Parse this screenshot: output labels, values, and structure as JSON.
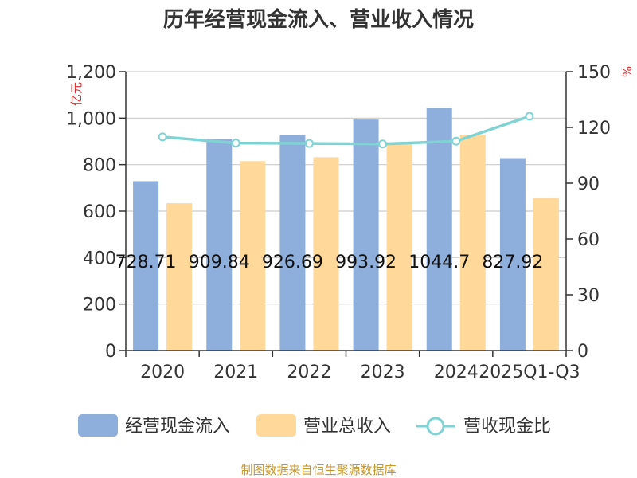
{
  "chart_data": {
    "type": "bar",
    "title": "历年经营现金流入、营业收入情况",
    "categories": [
      "2020",
      "2021",
      "2022",
      "2023",
      "2024",
      "2025Q1-Q3"
    ],
    "series": [
      {
        "name": "经营现金流入",
        "kind": "bar",
        "axis": "left",
        "color": "#8eaedb",
        "values": [
          728.71,
          909.84,
          926.69,
          993.92,
          1044.7,
          827.92
        ]
      },
      {
        "name": "营业总收入",
        "kind": "bar",
        "axis": "left",
        "color": "#ffd89a",
        "values": [
          634,
          815,
          832,
          888,
          928,
          657
        ]
      },
      {
        "name": "营收现金比",
        "kind": "line",
        "axis": "right",
        "color": "#7fd3d3",
        "values": [
          114.9,
          111.6,
          111.4,
          111.1,
          112.6,
          126.0
        ]
      }
    ],
    "data_labels": [
      "728.71",
      "909.84",
      "926.69",
      "993.92",
      "1044.7",
      "827.92"
    ],
    "y_left": {
      "unit": "亿元",
      "ylim": [
        0,
        1200
      ],
      "ticks": [
        0,
        200,
        400,
        600,
        800,
        1000,
        1200
      ],
      "tick_labels": [
        "0",
        "200",
        "400",
        "600",
        "800",
        "1,000",
        "1,200"
      ]
    },
    "y_right": {
      "unit": "%",
      "ylim": [
        0,
        150
      ],
      "ticks": [
        0,
        30,
        60,
        90,
        120,
        150
      ],
      "tick_labels": [
        "0",
        "30",
        "60",
        "90",
        "120",
        "150"
      ]
    },
    "grid": true,
    "legend_position": "bottom",
    "source": "制图数据来自恒生聚源数据库"
  }
}
